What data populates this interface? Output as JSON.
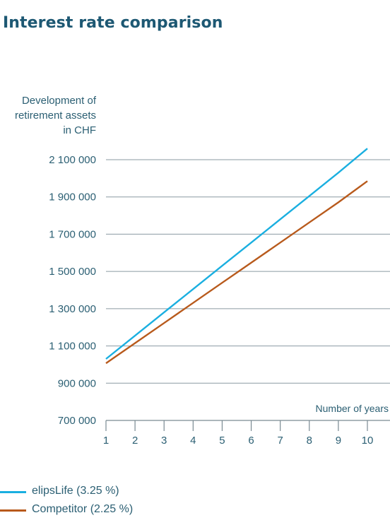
{
  "chart_data": {
    "type": "line",
    "title": "Interest rate comparison",
    "ylabel_lines": [
      "Development of",
      "retirement assets",
      "in CHF"
    ],
    "xlabel": "Number of years",
    "x": [
      1,
      2,
      3,
      4,
      5,
      6,
      7,
      8,
      9,
      10
    ],
    "xlim": [
      1,
      10
    ],
    "ylim": [
      700000,
      2100000
    ],
    "yticks": [
      700000,
      900000,
      1100000,
      1300000,
      1500000,
      1700000,
      1900000,
      2100000
    ],
    "ytick_labels": [
      "700 000",
      "900 000",
      "1 100 000",
      "1 300 000",
      "1 500 000",
      "1 700 000",
      "1 900 000",
      "2 100 000"
    ],
    "grid": true,
    "legend_position": "bottom-left",
    "series": [
      {
        "name": "elipsLife (3.25 %)",
        "color": "#1aafe0",
        "values": [
          1030000,
          1155000,
          1280000,
          1405000,
          1530000,
          1655000,
          1780000,
          1905000,
          2030000,
          2160000
        ]
      },
      {
        "name": "Competitor  (2.25 %)",
        "color": "#b85a1c",
        "values": [
          1007000,
          1115000,
          1223000,
          1331000,
          1439000,
          1547000,
          1655000,
          1763000,
          1871000,
          1985000
        ]
      }
    ]
  }
}
